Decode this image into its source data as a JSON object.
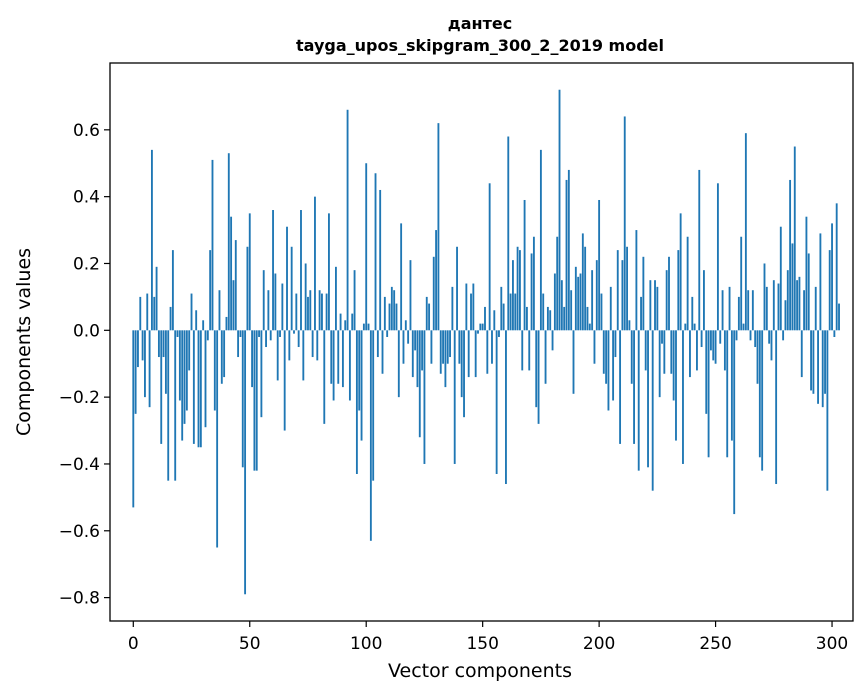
{
  "chart_data": {
    "type": "bar",
    "title_line1": "дантес",
    "title_line2": "tayga_upos_skipgram_300_2_2019 model",
    "xlabel": "Vector components",
    "ylabel": "Components values",
    "xlim": [
      -10,
      309
    ],
    "ylim": [
      -0.87,
      0.8
    ],
    "xticks": [
      0,
      50,
      100,
      150,
      200,
      250,
      300
    ],
    "yticks": [
      -0.8,
      -0.6,
      -0.4,
      -0.2,
      0.0,
      0.2,
      0.4,
      0.6
    ],
    "ytick_labels": [
      "−0.8",
      "−0.6",
      "−0.4",
      "−0.2",
      "0.0",
      "0.2",
      "0.4",
      "0.6"
    ],
    "grid": false,
    "bar_color": "#1f77b4",
    "values": [
      -0.53,
      -0.25,
      -0.11,
      0.1,
      -0.09,
      -0.2,
      0.11,
      -0.23,
      0.54,
      0.1,
      0.19,
      -0.08,
      -0.34,
      -0.08,
      -0.19,
      -0.45,
      0.07,
      0.24,
      -0.45,
      -0.02,
      -0.21,
      -0.33,
      -0.28,
      -0.24,
      -0.12,
      0.11,
      -0.34,
      0.06,
      -0.35,
      -0.35,
      0.03,
      -0.29,
      -0.03,
      0.24,
      0.51,
      -0.24,
      -0.65,
      0.12,
      -0.16,
      -0.14,
      0.04,
      0.53,
      0.34,
      0.15,
      0.27,
      -0.08,
      -0.02,
      -0.41,
      -0.79,
      0.25,
      0.35,
      -0.17,
      -0.42,
      -0.42,
      -0.02,
      -0.26,
      0.18,
      -0.05,
      0.12,
      -0.03,
      0.36,
      0.17,
      -0.15,
      -0.02,
      0.14,
      -0.3,
      0.31,
      -0.09,
      0.25,
      -0.01,
      0.11,
      -0.05,
      0.36,
      -0.15,
      0.2,
      0.1,
      0.12,
      -0.08,
      0.4,
      -0.09,
      0.12,
      0.11,
      -0.28,
      0.11,
      0.35,
      -0.16,
      -0.21,
      0.19,
      -0.16,
      0.05,
      -0.17,
      0.03,
      0.66,
      -0.21,
      0.05,
      0.18,
      -0.43,
      -0.24,
      -0.33,
      0.02,
      0.5,
      0.02,
      -0.63,
      -0.45,
      0.47,
      -0.08,
      0.42,
      -0.13,
      0.1,
      -0.02,
      0.08,
      0.13,
      0.12,
      0.08,
      -0.2,
      0.32,
      -0.1,
      0.03,
      -0.04,
      0.21,
      -0.14,
      -0.06,
      -0.17,
      -0.32,
      -0.12,
      -0.4,
      0.1,
      0.08,
      -0.1,
      0.22,
      0.3,
      0.62,
      -0.13,
      -0.1,
      -0.17,
      -0.1,
      -0.08,
      0.13,
      -0.4,
      0.25,
      -0.1,
      -0.2,
      -0.26,
      0.14,
      -0.14,
      0.11,
      0.14,
      -0.14,
      -0.01,
      0.02,
      0.02,
      0.07,
      -0.13,
      0.44,
      -0.1,
      0.06,
      -0.43,
      -0.02,
      0.13,
      0.08,
      -0.46,
      0.58,
      0.11,
      0.21,
      0.11,
      0.25,
      0.24,
      -0.12,
      0.39,
      0.07,
      -0.12,
      0.23,
      0.28,
      -0.23,
      -0.28,
      0.54,
      0.11,
      -0.16,
      0.07,
      0.06,
      -0.06,
      0.17,
      0.28,
      0.72,
      0.15,
      0.07,
      0.45,
      0.48,
      0.12,
      -0.19,
      0.19,
      0.16,
      0.17,
      0.29,
      0.25,
      0.07,
      0.02,
      0.18,
      -0.1,
      0.21,
      0.39,
      0.11,
      -0.13,
      -0.16,
      -0.24,
      0.13,
      -0.21,
      -0.08,
      0.24,
      -0.34,
      0.21,
      0.64,
      0.25,
      0.03,
      -0.16,
      -0.34,
      0.3,
      -0.42,
      0.1,
      0.22,
      -0.12,
      -0.41,
      0.15,
      -0.48,
      0.15,
      0.13,
      -0.2,
      -0.04,
      -0.13,
      0.18,
      0.22,
      -0.13,
      -0.21,
      -0.33,
      0.24,
      0.35,
      -0.4,
      0.02,
      0.28,
      -0.14,
      0.1,
      0.02,
      -0.12,
      0.48,
      -0.05,
      0.18,
      -0.25,
      -0.38,
      -0.06,
      -0.09,
      -0.1,
      0.44,
      -0.04,
      0.12,
      -0.12,
      -0.38,
      0.13,
      -0.33,
      -0.55,
      -0.03,
      0.1,
      0.28,
      0.02,
      0.59,
      0.12,
      -0.03,
      0.12,
      -0.05,
      -0.16,
      -0.38,
      -0.42,
      0.2,
      0.13,
      -0.04,
      -0.09,
      0.15,
      -0.46,
      0.14,
      0.31,
      -0.03,
      0.09,
      0.18,
      0.45,
      0.26,
      0.55,
      0.15,
      0.16,
      -0.14,
      0.12,
      0.34,
      0.23,
      -0.18,
      -0.19,
      0.13,
      -0.22,
      0.29,
      -0.23,
      -0.19,
      -0.48,
      0.24,
      0.32,
      -0.02,
      0.38,
      0.08
    ]
  }
}
